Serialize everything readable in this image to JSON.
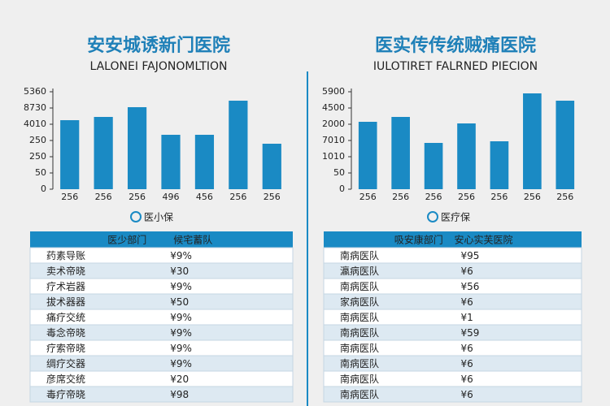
{
  "chart_data": [
    {
      "type": "bar",
      "title": "安安城诱新门医院",
      "subtitle": "LALONEI FAJONOMLTION",
      "categories": [
        "256",
        "256",
        "256",
        "496",
        "456",
        "256",
        "256"
      ],
      "series": [
        {
          "name": "医小保",
          "color": "#1a8ac4",
          "values": [
            4.25,
            4.45,
            5.05,
            3.35,
            3.35,
            5.45,
            2.8
          ]
        }
      ],
      "ylim": [
        0,
        6
      ],
      "yticks": [
        {
          "value": 0,
          "label": "0"
        },
        {
          "value": 1,
          "label": "50"
        },
        {
          "value": 2,
          "label": "250"
        },
        {
          "value": 3,
          "label": "250"
        },
        {
          "value": 4,
          "label": "4010"
        },
        {
          "value": 5,
          "label": "8730"
        },
        {
          "value": 6,
          "label": "5360"
        }
      ]
    },
    {
      "type": "bar",
      "title": "医实传传统贼痛医院",
      "subtitle": "IULOTIRET FALRNED PIECION",
      "categories": [
        "256",
        "256",
        "256",
        "256",
        "256",
        "256",
        "256"
      ],
      "series": [
        {
          "name": "医疗保",
          "color": "#1a8ac4",
          "values": [
            4.15,
            4.45,
            2.85,
            4.05,
            2.95,
            5.9,
            5.45
          ]
        }
      ],
      "ylim": [
        0,
        6
      ],
      "yticks": [
        {
          "value": 0,
          "label": "0"
        },
        {
          "value": 1,
          "label": "50"
        },
        {
          "value": 2,
          "label": "1010"
        },
        {
          "value": 3,
          "label": "7010"
        },
        {
          "value": 4,
          "label": "2000"
        },
        {
          "value": 5,
          "label": "4500"
        },
        {
          "value": 6,
          "label": "5900"
        }
      ]
    }
  ],
  "tables": [
    {
      "header": [
        "医少部门",
        "候宅蓄队"
      ],
      "rows": [
        [
          "药素导账",
          "¥9%"
        ],
        [
          "卖术帝晓",
          "¥30"
        ],
        [
          "疗术岩器",
          "¥9%"
        ],
        [
          "拔术器器",
          "¥50"
        ],
        [
          "痛疗交统",
          "¥9%"
        ],
        [
          "毒念帝晓",
          "¥9%"
        ],
        [
          "疗索帝晓",
          "¥9%"
        ],
        [
          "绸疗交器",
          "¥9%"
        ],
        [
          "彦席交统",
          "¥20"
        ],
        [
          "毒疗帝晓",
          "¥98"
        ]
      ]
    },
    {
      "header": [
        "吸安康部门",
        "安心实芙医院"
      ],
      "rows": [
        [
          "南病医队",
          "¥95"
        ],
        [
          "瀛病医队",
          "¥6"
        ],
        [
          "南病医队",
          "¥56"
        ],
        [
          "家病医队",
          "¥6"
        ],
        [
          "南病医队",
          "¥1"
        ],
        [
          "南病医队",
          "¥59"
        ],
        [
          "南病医队",
          "¥6"
        ],
        [
          "南病医队",
          "¥6"
        ],
        [
          "南病医队",
          "¥6"
        ],
        [
          "南病医队",
          "¥6"
        ]
      ]
    }
  ]
}
